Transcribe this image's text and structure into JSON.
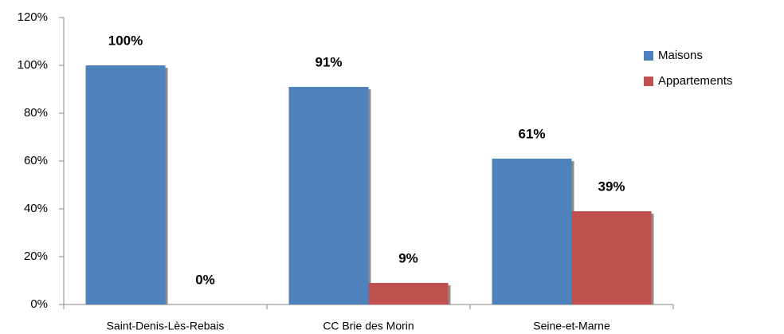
{
  "chart_data": {
    "type": "bar",
    "categories": [
      "Saint-Denis-Lès-Rebais",
      "CC Brie des Morin",
      "Seine-et-Marne"
    ],
    "series": [
      {
        "name": "Maisons",
        "color": "#4f81bd",
        "values": [
          100,
          91,
          61
        ],
        "value_labels": [
          "100%",
          "91%",
          "61%"
        ]
      },
      {
        "name": "Appartements",
        "color": "#c0504d",
        "values": [
          0,
          9,
          39
        ],
        "value_labels": [
          "0%",
          "9%",
          "39%"
        ]
      }
    ],
    "ylim": [
      0,
      120
    ],
    "yticks": [
      {
        "value": 0,
        "label": "0%"
      },
      {
        "value": 20,
        "label": "20%"
      },
      {
        "value": 40,
        "label": "40%"
      },
      {
        "value": 60,
        "label": "60%"
      },
      {
        "value": 80,
        "label": "80%"
      },
      {
        "value": 100,
        "label": "100%"
      },
      {
        "value": 120,
        "label": "120%"
      }
    ],
    "legend": "right",
    "grid": false
  }
}
